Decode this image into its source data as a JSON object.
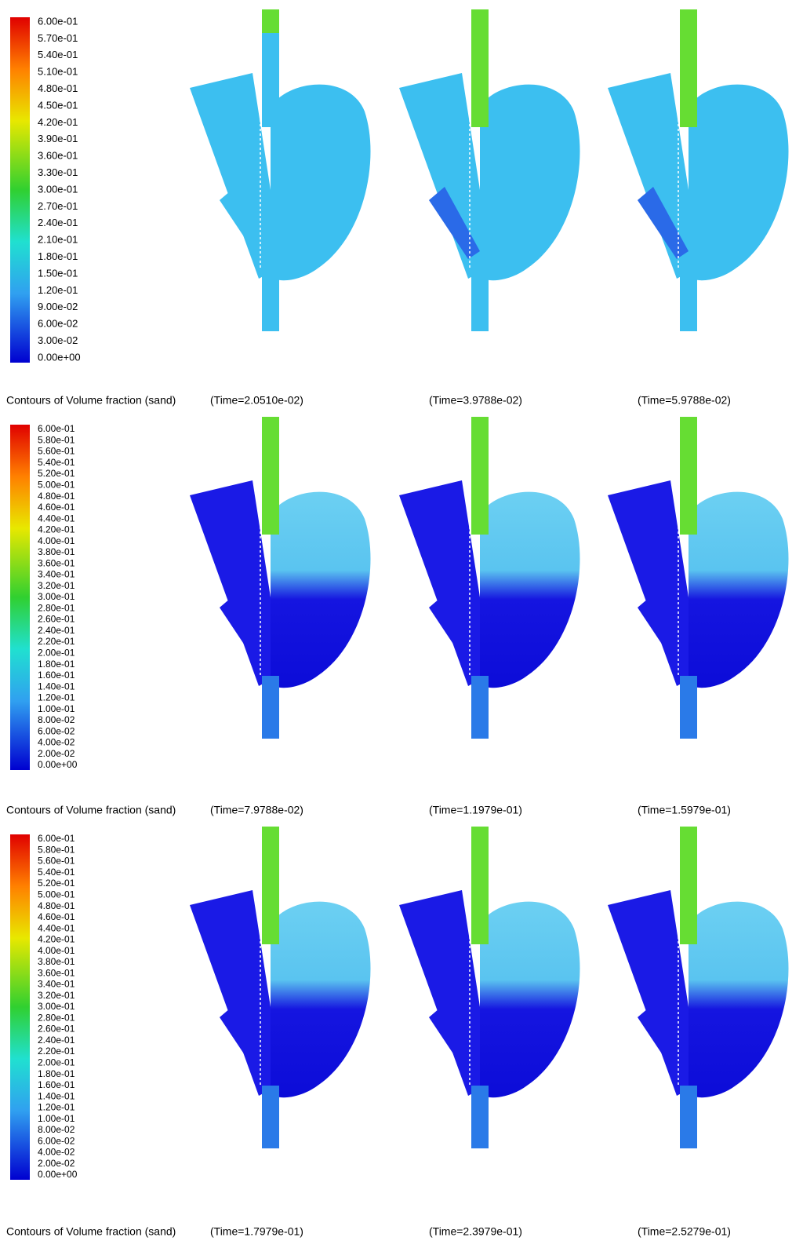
{
  "panels": [
    {
      "legend": [
        "6.00e-01",
        "5.70e-01",
        "5.40e-01",
        "5.10e-01",
        "4.80e-01",
        "4.50e-01",
        "4.20e-01",
        "3.90e-01",
        "3.60e-01",
        "3.30e-01",
        "3.00e-01",
        "2.70e-01",
        "2.40e-01",
        "2.10e-01",
        "1.80e-01",
        "1.50e-01",
        "1.20e-01",
        "9.00e-02",
        "6.00e-02",
        "3.00e-02",
        "0.00e+00"
      ],
      "caption": "Contours of Volume fraction (sand)",
      "times": [
        "(Time=2.0510e-02)",
        "(Time=3.9788e-02)",
        "(Time=5.9788e-02)"
      ]
    },
    {
      "legend": [
        "6.00e-01",
        "5.80e-01",
        "5.60e-01",
        "5.40e-01",
        "5.20e-01",
        "5.00e-01",
        "4.80e-01",
        "4.60e-01",
        "4.40e-01",
        "4.20e-01",
        "4.00e-01",
        "3.80e-01",
        "3.60e-01",
        "3.40e-01",
        "3.20e-01",
        "3.00e-01",
        "2.80e-01",
        "2.60e-01",
        "2.40e-01",
        "2.20e-01",
        "2.00e-01",
        "1.80e-01",
        "1.60e-01",
        "1.40e-01",
        "1.20e-01",
        "1.00e-01",
        "8.00e-02",
        "6.00e-02",
        "4.00e-02",
        "2.00e-02",
        "0.00e+00"
      ],
      "caption": "Contours of Volume fraction (sand)",
      "times": [
        "(Time=7.9788e-02)",
        "(Time=1.1979e-01)",
        "(Time=1.5979e-01)"
      ]
    },
    {
      "legend": [
        "6.00e-01",
        "5.80e-01",
        "5.60e-01",
        "5.40e-01",
        "5.20e-01",
        "5.00e-01",
        "4.80e-01",
        "4.60e-01",
        "4.40e-01",
        "4.20e-01",
        "4.00e-01",
        "3.80e-01",
        "3.60e-01",
        "3.40e-01",
        "3.20e-01",
        "3.00e-01",
        "2.80e-01",
        "2.60e-01",
        "2.40e-01",
        "2.20e-01",
        "2.00e-01",
        "1.80e-01",
        "1.60e-01",
        "1.40e-01",
        "1.20e-01",
        "1.00e-01",
        "8.00e-02",
        "6.00e-02",
        "4.00e-02",
        "2.00e-02",
        "0.00e+00"
      ],
      "caption": "Contours of Volume fraction (sand)",
      "times": [
        "(Time=1.7979e-01)",
        "(Time=2.3979e-01)",
        "(Time=2.5279e-01)"
      ]
    }
  ]
}
